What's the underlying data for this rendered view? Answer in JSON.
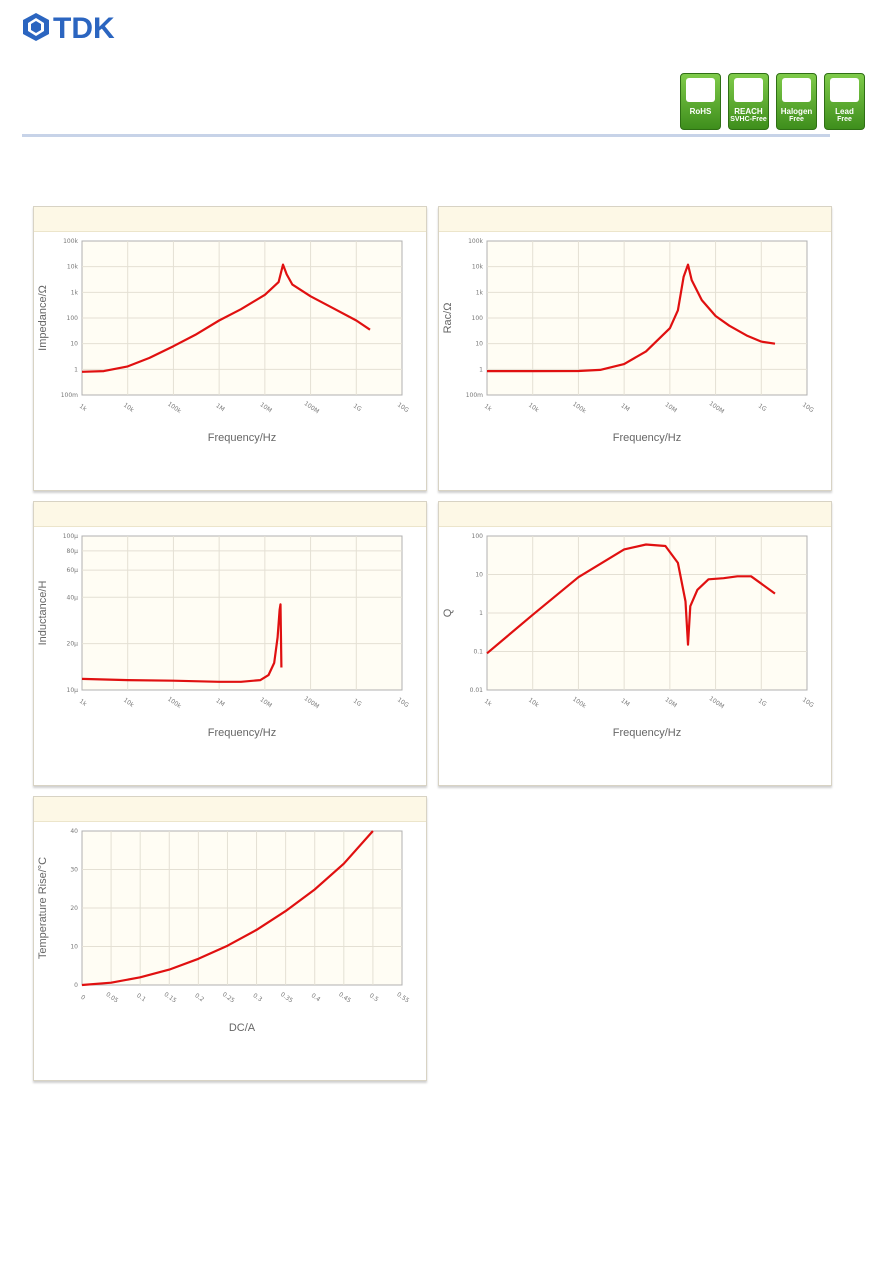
{
  "header": {
    "logo_text": "TDK",
    "badges": [
      {
        "label": "RoHS",
        "sub": ""
      },
      {
        "label": "REACH",
        "sub": "SVHC-Free"
      },
      {
        "label": "Halogen",
        "sub": "Free"
      },
      {
        "label": "Lead",
        "sub": "Free"
      }
    ],
    "colors": {
      "logo": "#2b65c0",
      "badge": "#4ea52a",
      "curve": "#e01010"
    }
  },
  "chart_data": [
    {
      "type": "line",
      "xlabel": "Frequency/Hz",
      "ylabel": "Impedance/Ω",
      "x_scale": "log",
      "y_scale": "log",
      "x_ticks": [
        "1k",
        "10k",
        "100k",
        "1M",
        "10M",
        "100M",
        "1G",
        "10G"
      ],
      "y_ticks": [
        "100m",
        "1",
        "10",
        "100",
        "1k",
        "10k",
        "100k"
      ],
      "xlim": [
        1000,
        10000000000
      ],
      "ylim": [
        0.1,
        100000
      ],
      "grid": true,
      "series": [
        {
          "x": [
            1000,
            3000,
            10000,
            30000,
            100000,
            300000,
            1000000,
            3000000,
            10000000,
            20000000,
            25000000,
            30000000,
            40000000,
            100000000,
            300000000,
            1000000000,
            2000000000
          ],
          "y": [
            0.8,
            0.85,
            1.3,
            2.8,
            8,
            22,
            80,
            220,
            800,
            2500,
            12000,
            5000,
            2000,
            700,
            250,
            80,
            35
          ]
        }
      ]
    },
    {
      "type": "line",
      "xlabel": "Frequency/Hz",
      "ylabel": "Rac/Ω",
      "x_scale": "log",
      "y_scale": "log",
      "x_ticks": [
        "1k",
        "10k",
        "100k",
        "1M",
        "10M",
        "100M",
        "1G",
        "10G"
      ],
      "y_ticks": [
        "100m",
        "1",
        "10",
        "100",
        "1k",
        "10k",
        "100k"
      ],
      "xlim": [
        1000,
        10000000000
      ],
      "ylim": [
        0.1,
        100000
      ],
      "grid": true,
      "series": [
        {
          "x": [
            1000,
            10000,
            100000,
            300000,
            1000000,
            3000000,
            10000000,
            15000000,
            20000000,
            25000000,
            30000000,
            50000000,
            100000000,
            200000000,
            500000000,
            1000000000,
            2000000000
          ],
          "y": [
            0.85,
            0.85,
            0.86,
            0.95,
            1.6,
            5,
            40,
            200,
            4000,
            12000,
            3000,
            500,
            120,
            50,
            20,
            12,
            10
          ]
        }
      ]
    },
    {
      "type": "line",
      "xlabel": "Frequency/Hz",
      "ylabel": "Inductance/H",
      "x_scale": "log",
      "y_scale": "log",
      "x_ticks": [
        "1k",
        "10k",
        "100k",
        "1M",
        "10M",
        "100M",
        "1G",
        "10G"
      ],
      "y_ticks": [
        "10μ",
        "20μ",
        "40μ",
        "60μ",
        "80μ",
        "100μ"
      ],
      "xlim": [
        1000,
        10000000000
      ],
      "ylim": [
        1e-05,
        0.0001
      ],
      "grid": true,
      "series": [
        {
          "x": [
            1000,
            10000,
            100000,
            1000000,
            3000000,
            8000000,
            12000000,
            16000000,
            19000000,
            21000000,
            22000000,
            23000000
          ],
          "y": [
            1.18e-05,
            1.16e-05,
            1.15e-05,
            1.13e-05,
            1.13e-05,
            1.16e-05,
            1.25e-05,
            1.5e-05,
            2.2e-05,
            3.3e-05,
            3.6e-05,
            1.4e-05
          ]
        }
      ]
    },
    {
      "type": "line",
      "xlabel": "Frequency/Hz",
      "ylabel": "Q",
      "x_scale": "log",
      "y_scale": "log",
      "x_ticks": [
        "1k",
        "10k",
        "100k",
        "1M",
        "10M",
        "100M",
        "1G",
        "10G"
      ],
      "y_ticks": [
        "0.01",
        "0.1",
        "1",
        "10",
        "100"
      ],
      "xlim": [
        1000,
        10000000000
      ],
      "ylim": [
        0.01,
        100
      ],
      "grid": true,
      "series": [
        {
          "x": [
            1000,
            10000,
            100000,
            1000000,
            3000000,
            8000000,
            15000000,
            22000000,
            25000000,
            28000000,
            40000000,
            70000000,
            150000000,
            300000000,
            600000000,
            2000000000
          ],
          "y": [
            0.09,
            0.9,
            8.5,
            45,
            60,
            55,
            20,
            2,
            0.15,
            1.5,
            4,
            7.5,
            8,
            9,
            9,
            3.2
          ]
        }
      ]
    },
    {
      "type": "line",
      "xlabel": "DC/A",
      "ylabel": "Temperature Rise/°C",
      "x_scale": "linear",
      "y_scale": "linear",
      "x_ticks": [
        "0",
        "0.05",
        "0.1",
        "0.15",
        "0.2",
        "0.25",
        "0.3",
        "0.35",
        "0.4",
        "0.45",
        "0.5",
        "0.55"
      ],
      "y_ticks": [
        "0",
        "10",
        "20",
        "30",
        "40"
      ],
      "xlim": [
        0,
        0.55
      ],
      "ylim": [
        0,
        40
      ],
      "grid": true,
      "series": [
        {
          "x": [
            0,
            0.05,
            0.1,
            0.15,
            0.2,
            0.25,
            0.3,
            0.35,
            0.4,
            0.45,
            0.5
          ],
          "y": [
            0,
            0.6,
            2,
            4,
            6.8,
            10.2,
            14.3,
            19.2,
            24.8,
            31.5,
            40
          ]
        }
      ]
    }
  ]
}
